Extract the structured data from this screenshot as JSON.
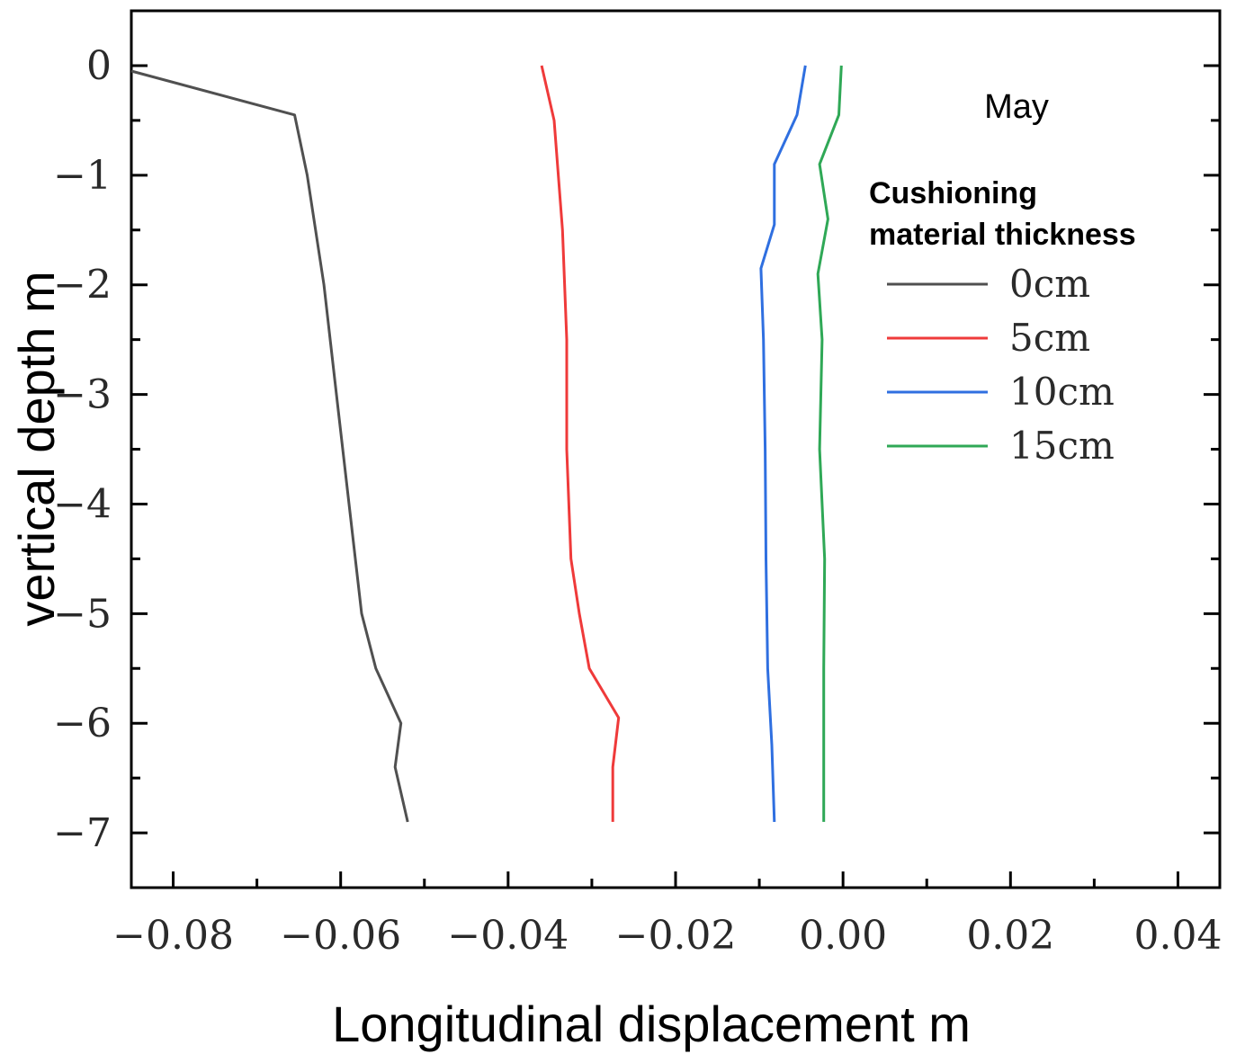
{
  "chart_data": {
    "type": "line",
    "title": "",
    "xlabel": "Longitudinal displacement m",
    "ylabel": "vertical depth m",
    "xlim": [
      -0.085,
      0.045
    ],
    "ylim": [
      -7.5,
      0.5
    ],
    "x_ticks": [
      -0.08,
      -0.06,
      -0.04,
      -0.02,
      0.0,
      0.02,
      0.04
    ],
    "x_tick_labels": [
      "−0.08",
      "−0.06",
      "−0.04",
      "−0.02",
      "0.00",
      "0.02",
      "0.04"
    ],
    "y_ticks": [
      0,
      -1,
      -2,
      -3,
      -4,
      -5,
      -6,
      -7
    ],
    "y_tick_labels": [
      "0",
      "−1",
      "−2",
      "−3",
      "−4",
      "−5",
      "−6",
      "−7"
    ],
    "annotation": "May",
    "legend_title": [
      "Cushioning",
      "material thickness"
    ],
    "legend_position": "right",
    "series": [
      {
        "name": "0cm",
        "color": "#505050",
        "points": [
          [
            -0.085,
            -0.05
          ],
          [
            -0.0655,
            -0.45
          ],
          [
            -0.064,
            -1.0
          ],
          [
            -0.062,
            -2.0
          ],
          [
            -0.0605,
            -3.0
          ],
          [
            -0.059,
            -4.0
          ],
          [
            -0.0575,
            -5.0
          ],
          [
            -0.0558,
            -5.5
          ],
          [
            -0.0528,
            -6.0
          ],
          [
            -0.0535,
            -6.4
          ],
          [
            -0.052,
            -6.9
          ]
        ]
      },
      {
        "name": "5cm",
        "color": "#ef3a3a",
        "points": [
          [
            -0.036,
            0.0
          ],
          [
            -0.0345,
            -0.5
          ],
          [
            -0.0335,
            -1.5
          ],
          [
            -0.033,
            -2.5
          ],
          [
            -0.033,
            -3.5
          ],
          [
            -0.0325,
            -4.5
          ],
          [
            -0.0315,
            -5.0
          ],
          [
            -0.0303,
            -5.5
          ],
          [
            -0.0268,
            -5.95
          ],
          [
            -0.0275,
            -6.4
          ],
          [
            -0.0275,
            -6.9
          ]
        ]
      },
      {
        "name": "10cm",
        "color": "#2f6fe0",
        "points": [
          [
            -0.0045,
            0.0
          ],
          [
            -0.0055,
            -0.45
          ],
          [
            -0.0082,
            -0.9
          ],
          [
            -0.0082,
            -1.45
          ],
          [
            -0.0098,
            -1.85
          ],
          [
            -0.0095,
            -2.5
          ],
          [
            -0.0093,
            -3.5
          ],
          [
            -0.0092,
            -4.5
          ],
          [
            -0.009,
            -5.5
          ],
          [
            -0.0085,
            -6.2
          ],
          [
            -0.0082,
            -6.9
          ]
        ]
      },
      {
        "name": "15cm",
        "color": "#2fa856",
        "points": [
          [
            -0.0002,
            0.0
          ],
          [
            -0.0005,
            -0.45
          ],
          [
            -0.0028,
            -0.9
          ],
          [
            -0.0018,
            -1.4
          ],
          [
            -0.003,
            -1.9
          ],
          [
            -0.0025,
            -2.5
          ],
          [
            -0.0028,
            -3.5
          ],
          [
            -0.0022,
            -4.5
          ],
          [
            -0.0023,
            -5.5
          ],
          [
            -0.0023,
            -6.5
          ],
          [
            -0.0023,
            -6.9
          ]
        ]
      }
    ]
  }
}
